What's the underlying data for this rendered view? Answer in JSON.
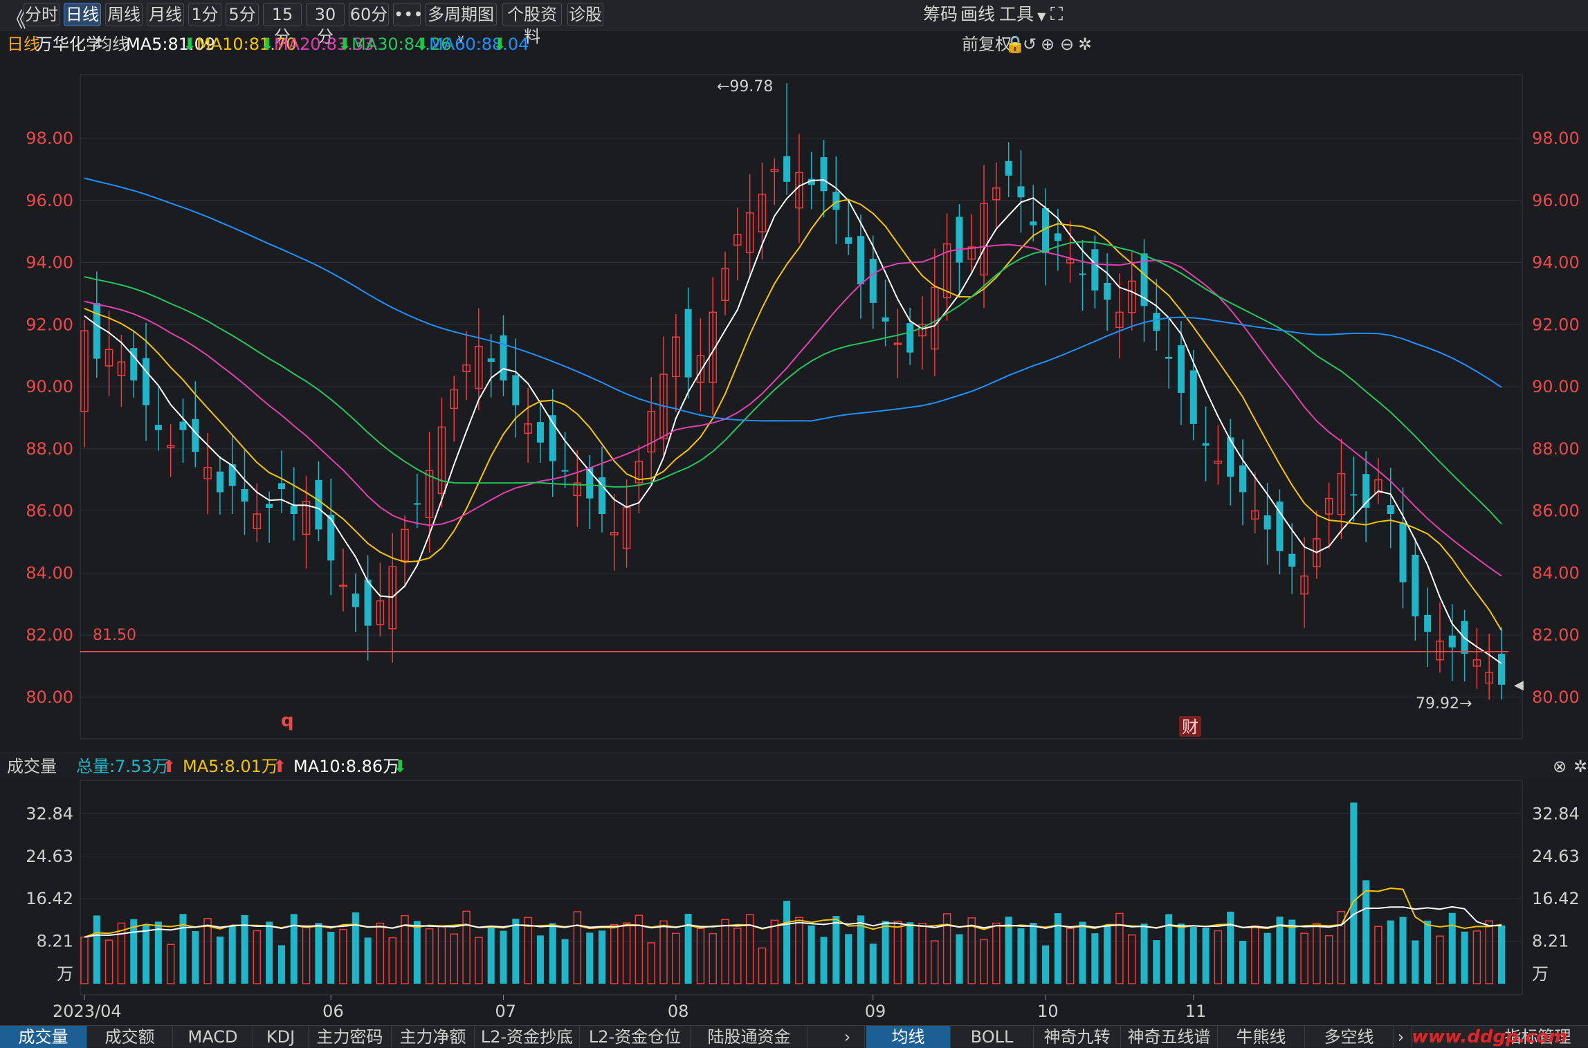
{
  "toolbar": {
    "back_icon": "chevron-double-left-icon",
    "tabs": [
      "分时",
      "日线",
      "周线",
      "月线",
      "1分",
      "5分",
      "15分",
      "30分",
      "60分"
    ],
    "active_tab": "日线",
    "more_label": "•••",
    "multi_period": "多周期图",
    "stock_info": "个股资料",
    "diagnose": "诊股",
    "chips": "筹码",
    "draw": "画线",
    "tools": "工具",
    "fullscreen_icon": "fullscreen-icon"
  },
  "ma_bar": {
    "period": "日线",
    "stock_name": "万华化学",
    "ma_label": "均线",
    "ma5": "MA5:81.09",
    "ma10": "MA10:81.70",
    "ma20": "MA20:83.33",
    "ma30": "MA30:84.26",
    "ma60": "MA60:88.04",
    "adjust": "前复权",
    "colors": {
      "ma5": "#ffffff",
      "ma10": "#f5c400",
      "ma20": "#e040b0",
      "ma30": "#22c55e",
      "ma60": "#1e90ff"
    }
  },
  "price_axis": [
    "98.00",
    "96.00",
    "94.00",
    "92.00",
    "90.00",
    "88.00",
    "86.00",
    "84.00",
    "82.00",
    "80.00"
  ],
  "annotations": {
    "high": "←99.78",
    "low": "79.92→",
    "support_label": "81.50",
    "marker_q": "q",
    "marker_cai": "财"
  },
  "vol_bar": {
    "label": "成交量",
    "total": "总量:7.53万",
    "ma5": "MA5:8.01万",
    "ma10": "MA10:8.86万"
  },
  "vol_axis": [
    "32.84",
    "24.63",
    "16.42",
    "8.21",
    "万"
  ],
  "x_axis": [
    "2023/04",
    "06",
    "07",
    "08",
    "09",
    "10",
    "11"
  ],
  "bottom_left_tabs": [
    "成交量",
    "成交额",
    "MACD",
    "KDJ",
    "主力密码",
    "主力净额",
    "L2-资金抄底",
    "L2-资金仓位",
    "陆股通资金"
  ],
  "bottom_right_tabs": [
    "均线",
    "BOLL",
    "神奇九转",
    "神奇五线谱",
    "牛熊线",
    "多空线"
  ],
  "bottom_right_extra": "指标管理",
  "watermark": "www.ddgp.com",
  "chart_data": {
    "type": "candlestick",
    "title": "万华化学 日线",
    "ylim": [
      79.5,
      99.9
    ],
    "closes": [
      91.8,
      90.9,
      91.2,
      90.8,
      90.2,
      89.4,
      88.6,
      88.1,
      88.6,
      87.9,
      87.4,
      86.6,
      86.8,
      86.3,
      85.9,
      86.1,
      86.7,
      85.9,
      86.3,
      85.4,
      84.4,
      83.6,
      82.9,
      82.3,
      83.1,
      84.2,
      85.4,
      86.2,
      87.3,
      88.7,
      89.9,
      90.7,
      91.3,
      90.8,
      90.2,
      89.4,
      88.8,
      88.2,
      87.6,
      87.3,
      86.9,
      86.4,
      85.9,
      85.3,
      86.1,
      87.6,
      89.2,
      90.4,
      91.6,
      90.3,
      91.0,
      92.4,
      93.8,
      94.9,
      95.6,
      96.2,
      97.0,
      96.6,
      96.9,
      96.5,
      96.3,
      95.7,
      94.6,
      93.3,
      92.7,
      92.1,
      91.4,
      91.1,
      92.0,
      93.2,
      94.6,
      94.0,
      94.5,
      95.9,
      96.4,
      96.8,
      96.1,
      95.2,
      94.3,
      94.7,
      94.1,
      93.6,
      93.1,
      92.8,
      92.4,
      93.4,
      92.6,
      91.8,
      90.9,
      89.8,
      88.8,
      88.1,
      87.6,
      87.1,
      86.6,
      86.0,
      85.4,
      84.7,
      84.2,
      83.9,
      85.1,
      86.4,
      87.2,
      86.5,
      86.1,
      87.0,
      85.9,
      83.7,
      82.6,
      82.1,
      81.8,
      81.6,
      81.4,
      81.2,
      80.8,
      80.4
    ]
  }
}
